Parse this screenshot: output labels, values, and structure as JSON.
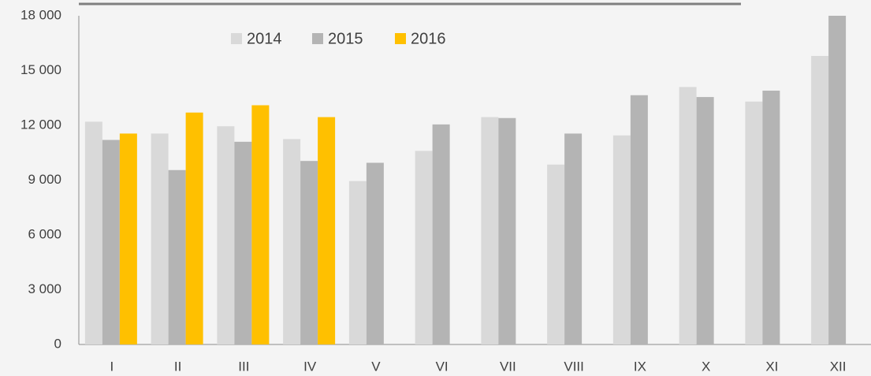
{
  "chart_data": {
    "type": "bar",
    "categories": [
      "I",
      "II",
      "III",
      "IV",
      "V",
      "VI",
      "VII",
      "VIII",
      "IX",
      "X",
      "XI",
      "XII"
    ],
    "series": [
      {
        "name": "2014",
        "color": "#d9d9d9",
        "values": [
          12200,
          11550,
          11950,
          11250,
          8950,
          10600,
          12450,
          9850,
          11450,
          14100,
          13300,
          15800
        ]
      },
      {
        "name": "2015",
        "color": "#b4b4b4",
        "values": [
          11200,
          9550,
          11100,
          10050,
          9950,
          12050,
          12400,
          11550,
          13650,
          13550,
          13900,
          18000
        ]
      },
      {
        "name": "2016",
        "color": "#ffc000",
        "values": [
          11550,
          12700,
          13100,
          12450,
          null,
          null,
          null,
          null,
          null,
          null,
          null,
          null
        ]
      }
    ],
    "ylim": [
      0,
      18000
    ],
    "yticks": [
      0,
      {
        "value": 3000,
        "label": "3 000"
      },
      {
        "value": 6000,
        "label": "6 000"
      },
      {
        "value": 9000,
        "label": "9 000"
      },
      {
        "value": 12000,
        "label": "12 000"
      },
      {
        "value": 15000,
        "label": "15 000"
      },
      {
        "value": 18000,
        "label": "18 000"
      }
    ],
    "grid": false
  }
}
